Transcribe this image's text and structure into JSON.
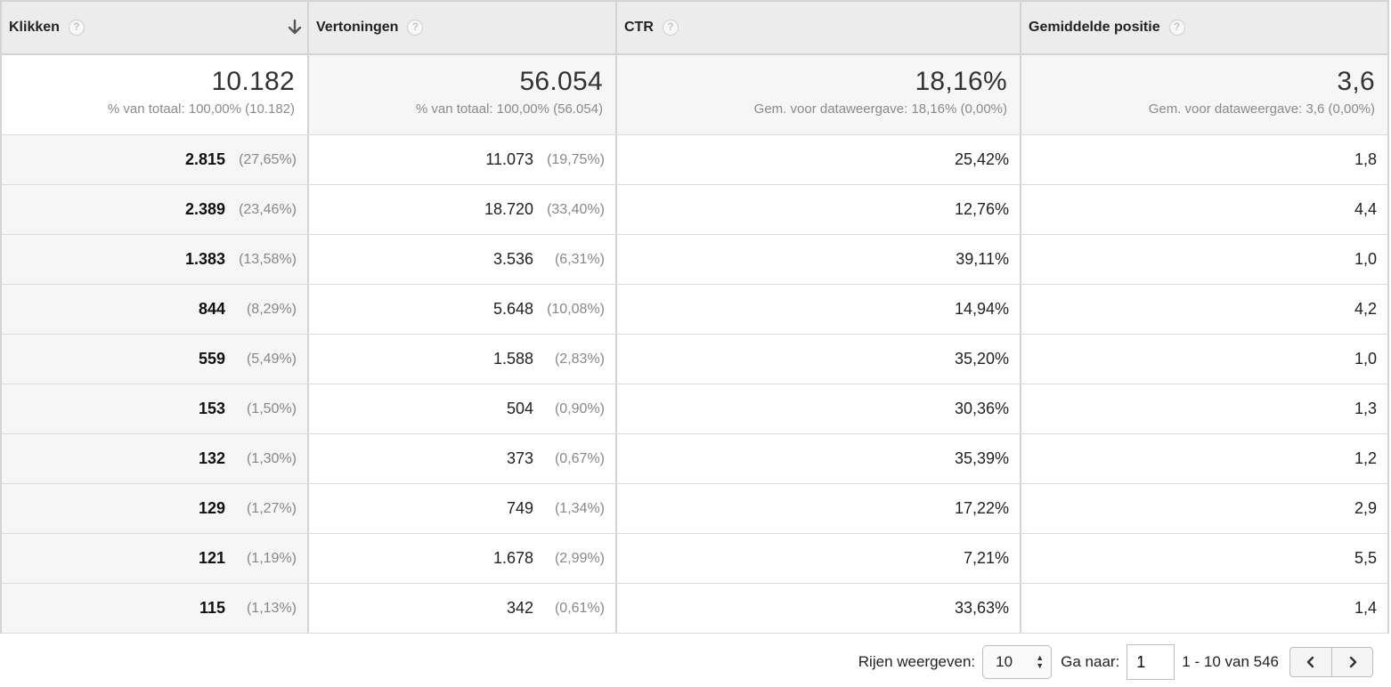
{
  "columns": [
    {
      "label": "Klikken",
      "help": "?"
    },
    {
      "label": "Vertoningen",
      "help": "?"
    },
    {
      "label": "CTR",
      "help": "?"
    },
    {
      "label": "Gemiddelde positie",
      "help": "?"
    }
  ],
  "totals": [
    {
      "value": "10.182",
      "sub": "% van totaal: 100,00% (10.182)"
    },
    {
      "value": "56.054",
      "sub": "% van totaal: 100,00% (56.054)"
    },
    {
      "value": "18,16%",
      "sub": "Gem. voor dataweergave: 18,16% (0,00%)"
    },
    {
      "value": "3,6",
      "sub": "Gem. voor dataweergave: 3,6 (0,00%)"
    }
  ],
  "rows": [
    {
      "clicks": "2.815",
      "clicks_pct": "(27,65%)",
      "impr": "11.073",
      "impr_pct": "(19,75%)",
      "ctr": "25,42%",
      "pos": "1,8"
    },
    {
      "clicks": "2.389",
      "clicks_pct": "(23,46%)",
      "impr": "18.720",
      "impr_pct": "(33,40%)",
      "ctr": "12,76%",
      "pos": "4,4"
    },
    {
      "clicks": "1.383",
      "clicks_pct": "(13,58%)",
      "impr": "3.536",
      "impr_pct": "(6,31%)",
      "ctr": "39,11%",
      "pos": "1,0"
    },
    {
      "clicks": "844",
      "clicks_pct": "(8,29%)",
      "impr": "5.648",
      "impr_pct": "(10,08%)",
      "ctr": "14,94%",
      "pos": "4,2"
    },
    {
      "clicks": "559",
      "clicks_pct": "(5,49%)",
      "impr": "1.588",
      "impr_pct": "(2,83%)",
      "ctr": "35,20%",
      "pos": "1,0"
    },
    {
      "clicks": "153",
      "clicks_pct": "(1,50%)",
      "impr": "504",
      "impr_pct": "(0,90%)",
      "ctr": "30,36%",
      "pos": "1,3"
    },
    {
      "clicks": "132",
      "clicks_pct": "(1,30%)",
      "impr": "373",
      "impr_pct": "(0,67%)",
      "ctr": "35,39%",
      "pos": "1,2"
    },
    {
      "clicks": "129",
      "clicks_pct": "(1,27%)",
      "impr": "749",
      "impr_pct": "(1,34%)",
      "ctr": "17,22%",
      "pos": "2,9"
    },
    {
      "clicks": "121",
      "clicks_pct": "(1,19%)",
      "impr": "1.678",
      "impr_pct": "(2,99%)",
      "ctr": "7,21%",
      "pos": "5,5"
    },
    {
      "clicks": "115",
      "clicks_pct": "(1,13%)",
      "impr": "342",
      "impr_pct": "(0,61%)",
      "ctr": "33,63%",
      "pos": "1,4"
    }
  ],
  "pager": {
    "rows_label": "Rijen weergeven:",
    "rows_value": "10",
    "goto_label": "Ga naar:",
    "goto_value": "1",
    "range": "1 - 10 van 546"
  },
  "icons": {
    "sort": "arrow-down-icon",
    "help": "question-circle-icon",
    "prev": "chevron-left-icon",
    "next": "chevron-right-icon"
  }
}
